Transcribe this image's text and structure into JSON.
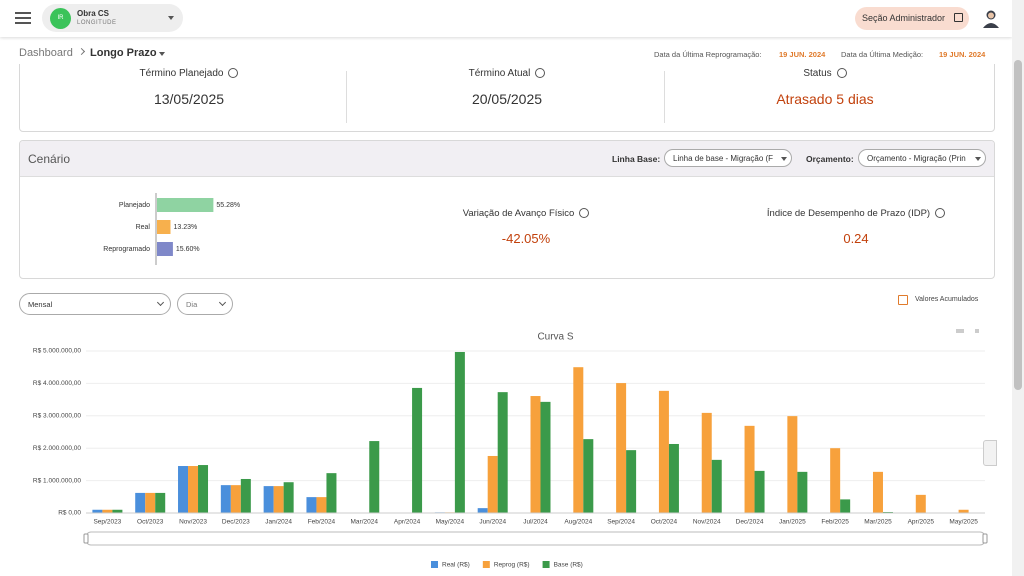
{
  "topbar": {
    "avatar": "IR",
    "project_name": "Obra CS",
    "project_sub": "LONGITUDE",
    "admin_button": "Seção Administrador"
  },
  "breadcrumb": {
    "root": "Dashboard",
    "current": "Longo Prazo"
  },
  "dates": {
    "reprog_label": "Data da Última Reprogramação:",
    "reprog_value": "19 JUN. 2024",
    "medicao_label": "Data da Última Medição:",
    "medicao_value": "19 JUN. 2024"
  },
  "summary": [
    {
      "label": "Término Planejado",
      "value": "13/05/2025"
    },
    {
      "label": "Término Atual",
      "value": "20/05/2025"
    },
    {
      "label": "Status",
      "value": "Atrasado 5 dias"
    }
  ],
  "cenario": {
    "title": "Cenário",
    "linha_base_label": "Linha Base:",
    "linha_base_value": "Linha de base - Migração (F",
    "orcamento_label": "Orçamento:",
    "orcamento_value": "Orçamento - Migração (Prin",
    "progress": {
      "type": "bar",
      "categories": [
        "Planejado",
        "Real",
        "Reprogramado"
      ],
      "values": [
        55.28,
        13.23,
        15.6
      ],
      "value_labels": [
        "55.28%",
        "13.23%",
        "15.60%"
      ],
      "colors": [
        "#8fd3a2",
        "#f7b04d",
        "#7f88c9"
      ]
    },
    "metrics": [
      {
        "label": "Variação de Avanço Físico",
        "value": "-42.05%"
      },
      {
        "label": "Índice de Desempenho de Prazo (IDP)",
        "value": "0.24"
      }
    ]
  },
  "filters": {
    "period": "Mensal",
    "unit": "Dia",
    "accumulated": "Valores Acumulados"
  },
  "chart_data": {
    "type": "bar",
    "title": "Curva S",
    "categories": [
      "Sep/2023",
      "Oct/2023",
      "Nov/2023",
      "Dec/2023",
      "Jan/2024",
      "Feb/2024",
      "Mar/2024",
      "Apr/2024",
      "May/2024",
      "Jun/2024",
      "Jul/2024",
      "Aug/2024",
      "Sep/2024",
      "Oct/2024",
      "Nov/2024",
      "Dec/2024",
      "Jan/2025",
      "Feb/2025",
      "Mar/2025",
      "Apr/2025",
      "May/2025"
    ],
    "series": [
      {
        "name": "Real (R$)",
        "color": "#4a8fdc",
        "values": [
          100000,
          620000,
          1450000,
          860000,
          830000,
          490000,
          null,
          null,
          20000,
          150000,
          null,
          null,
          null,
          null,
          null,
          null,
          null,
          null,
          null,
          null,
          null
        ]
      },
      {
        "name": "Reprog (R$)",
        "color": "#f7a13c",
        "values": [
          100000,
          620000,
          1450000,
          860000,
          830000,
          490000,
          null,
          null,
          20000,
          1760000,
          3610000,
          4500000,
          4010000,
          3770000,
          3090000,
          2690000,
          2990000,
          2000000,
          1270000,
          560000,
          100000
        ]
      },
      {
        "name": "Base (R$)",
        "color": "#3b9a4a",
        "values": [
          100000,
          620000,
          1480000,
          1050000,
          950000,
          1230000,
          2220000,
          3860000,
          4970000,
          3730000,
          3430000,
          2280000,
          1940000,
          2130000,
          1640000,
          1300000,
          1270000,
          420000,
          30000,
          null,
          null
        ]
      }
    ],
    "ylim": [
      0,
      5000000
    ],
    "yticks": [
      {
        "value": 0,
        "label": "R$ 0,00"
      },
      {
        "value": 1000000,
        "label": "R$ 1.000.000,00"
      },
      {
        "value": 2000000,
        "label": "R$ 2.000.000,00"
      },
      {
        "value": 3000000,
        "label": "R$ 3.000.000,00"
      },
      {
        "value": 4000000,
        "label": "R$ 4.000.000,00"
      },
      {
        "value": 5000000,
        "label": "R$ 5.000.000,00"
      }
    ],
    "grid": true
  }
}
